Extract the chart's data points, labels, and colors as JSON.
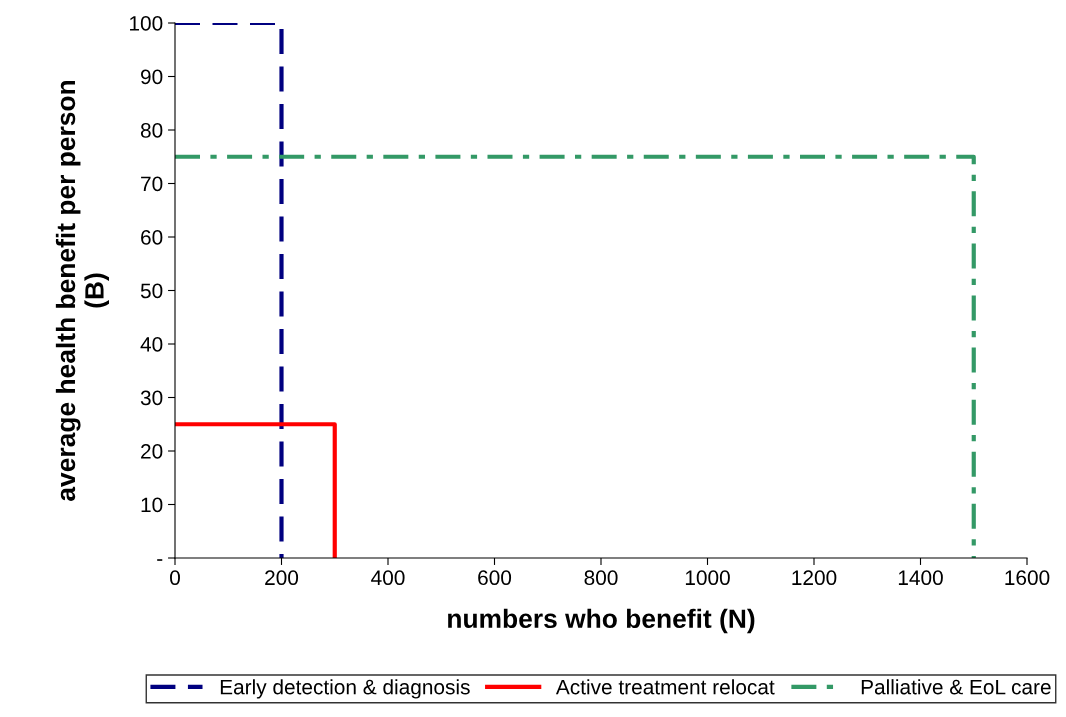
{
  "chart_data": {
    "type": "line",
    "xlabel": "numbers who benefit (N)",
    "ylabel": "average health benefit per person\n(B)",
    "series": [
      {
        "name": "Early detection & diagnosis",
        "color": "#000080",
        "line_style": "dashed",
        "x": [
          0,
          200,
          200
        ],
        "values": [
          100,
          100,
          0
        ]
      },
      {
        "name": "Active treatment relocat",
        "color": "#ff0000",
        "line_style": "solid",
        "x": [
          0,
          300,
          300
        ],
        "values": [
          25,
          25,
          0
        ]
      },
      {
        "name": "Palliative & EoL care",
        "color": "#339966",
        "line_style": "dashdot",
        "x": [
          0,
          1500,
          1500
        ],
        "values": [
          75,
          75,
          0
        ]
      }
    ],
    "xlim": [
      0,
      1600
    ],
    "xticks": [
      0,
      200,
      400,
      600,
      800,
      1000,
      1200,
      1400,
      1600
    ],
    "ylim": [
      0,
      100
    ],
    "yticks": [
      {
        "value": 0,
        "label": "-"
      },
      10,
      20,
      30,
      40,
      50,
      60,
      70,
      80,
      90,
      100
    ],
    "grid": false,
    "legend": "bottom",
    "marker": "none"
  }
}
